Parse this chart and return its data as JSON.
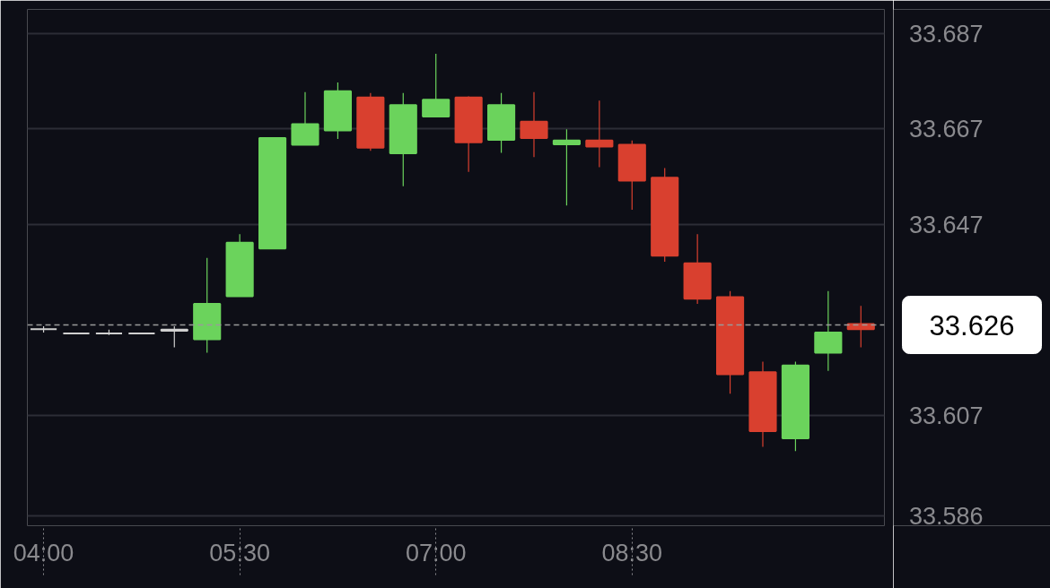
{
  "chart_data": {
    "type": "candlestick",
    "x": [
      4.0,
      4.25,
      4.5,
      4.75,
      5.0,
      5.25,
      5.5,
      5.75,
      6.0,
      6.25,
      6.5,
      6.75,
      7.0,
      7.25,
      7.5,
      7.75,
      8.0,
      8.25,
      8.5,
      8.75,
      9.0,
      9.25,
      9.5,
      9.75,
      10.0,
      10.25
    ],
    "ohlc": [
      [
        33.6251,
        33.6257,
        33.6244,
        33.6251
      ],
      [
        33.6242,
        33.6242,
        33.6242,
        33.6242
      ],
      [
        33.6242,
        33.625,
        33.6239,
        33.6242
      ],
      [
        33.6242,
        33.6242,
        33.6242,
        33.6242
      ],
      [
        33.6248,
        33.6257,
        33.6213,
        33.625
      ],
      [
        33.623,
        33.64,
        33.6202,
        33.6304
      ],
      [
        33.632,
        33.645,
        33.632,
        33.6432
      ],
      [
        33.642,
        33.6651,
        33.642,
        33.6651
      ],
      [
        33.6637,
        33.6747,
        33.6637,
        33.668
      ],
      [
        33.6667,
        33.6767,
        33.6649,
        33.6749
      ],
      [
        33.6736,
        33.6745,
        33.6624,
        33.6631
      ],
      [
        33.6619,
        33.6745,
        33.655,
        33.672
      ],
      [
        33.6696,
        33.6827,
        33.6696,
        33.6731
      ],
      [
        33.6736,
        33.6738,
        33.658,
        33.6642
      ],
      [
        33.6647,
        33.6745,
        33.662,
        33.672
      ],
      [
        33.6685,
        33.6747,
        33.6611,
        33.6651
      ],
      [
        33.6638,
        33.6669,
        33.651,
        33.6646
      ],
      [
        33.6646,
        33.6729,
        33.659,
        33.6633
      ],
      [
        33.6637,
        33.6646,
        33.6501,
        33.6562
      ],
      [
        33.6568,
        33.6588,
        33.6392,
        33.6405
      ],
      [
        33.6389,
        33.645,
        33.6304,
        33.6315
      ],
      [
        33.6318,
        33.6331,
        33.6116,
        33.6157
      ],
      [
        33.6161,
        33.6183,
        33.6005,
        33.6038
      ],
      [
        33.6023,
        33.6183,
        33.5996,
        33.6175
      ],
      [
        33.6202,
        33.6331,
        33.6164,
        33.6244
      ],
      [
        33.6262,
        33.63,
        33.6213,
        33.6251
      ]
    ],
    "colors": [
      "#d0d0d0",
      "#d0d0d0",
      "#d0d0d0",
      "#d0d0d0",
      "#d0d0d0",
      "#6bd35c",
      "#6bd35c",
      "#6bd35c",
      "#6bd35c",
      "#6bd35c",
      "#d9402f",
      "#6bd35c",
      "#6bd35c",
      "#d9402f",
      "#6bd35c",
      "#d9402f",
      "#6bd35c",
      "#d9402f",
      "#d9402f",
      "#d9402f",
      "#d9402f",
      "#d9402f",
      "#d9402f",
      "#6bd35c",
      "#6bd35c",
      "#d9402f"
    ],
    "xlim": [
      3.876,
      10.43
    ],
    "xticks": [
      {
        "value": 4,
        "label": "04:00"
      },
      {
        "value": 5.5,
        "label": "05:30"
      },
      {
        "value": 7,
        "label": "07:00"
      },
      {
        "value": 8.5,
        "label": "08:30"
      }
    ],
    "ylim": [
      33.584,
      33.692
    ],
    "yticks": [
      33.586,
      33.607,
      33.647,
      33.667,
      33.687
    ],
    "grid": "y",
    "ref_lines": [
      {
        "axis": "y",
        "value": 33.626,
        "label": "33.626",
        "line_style": "dashed",
        "color": "#9a9a9a"
      }
    ]
  }
}
